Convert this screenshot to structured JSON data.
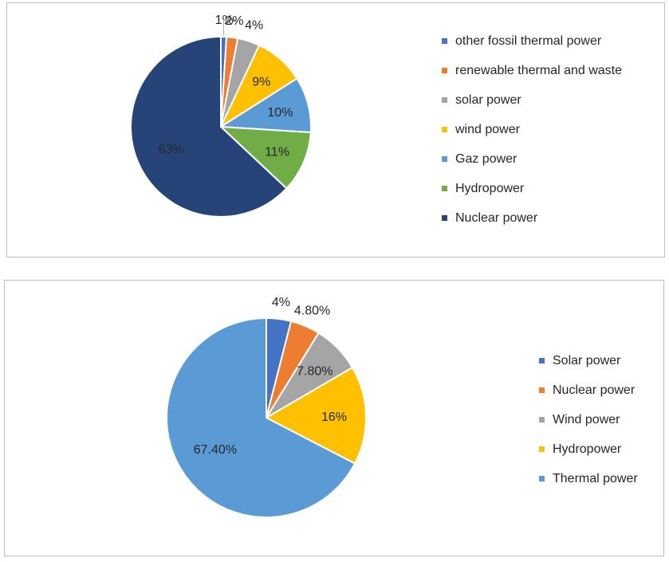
{
  "chart_data": [
    {
      "type": "pie",
      "title": "",
      "legend_position": "right",
      "categories": [
        "other fossil thermal power",
        "renewable thermal and waste",
        "solar power",
        "wind power",
        "Gaz power",
        "Hydropower",
        "Nuclear power"
      ],
      "values": [
        1,
        2,
        4,
        9,
        10,
        11,
        63
      ],
      "labels": [
        "1%",
        "2%",
        "4%",
        "9%",
        "10%",
        "11%",
        "63%"
      ],
      "colors": [
        "#4472c4",
        "#ed7d31",
        "#a5a5a5",
        "#ffc000",
        "#5b9bd5",
        "#70ad47",
        "#264478"
      ]
    },
    {
      "type": "pie",
      "title": "",
      "legend_position": "right",
      "categories": [
        "Solar power",
        "Nuclear power",
        "Wind power",
        "Hydropower",
        "Thermal power"
      ],
      "values": [
        4,
        4.8,
        7.8,
        16,
        67.4
      ],
      "labels": [
        "4%",
        "4.80%",
        "7.80%",
        "16%",
        "67.40%"
      ],
      "colors": [
        "#4472c4",
        "#ed7d31",
        "#a5a5a5",
        "#ffc000",
        "#5b9bd5"
      ]
    }
  ]
}
